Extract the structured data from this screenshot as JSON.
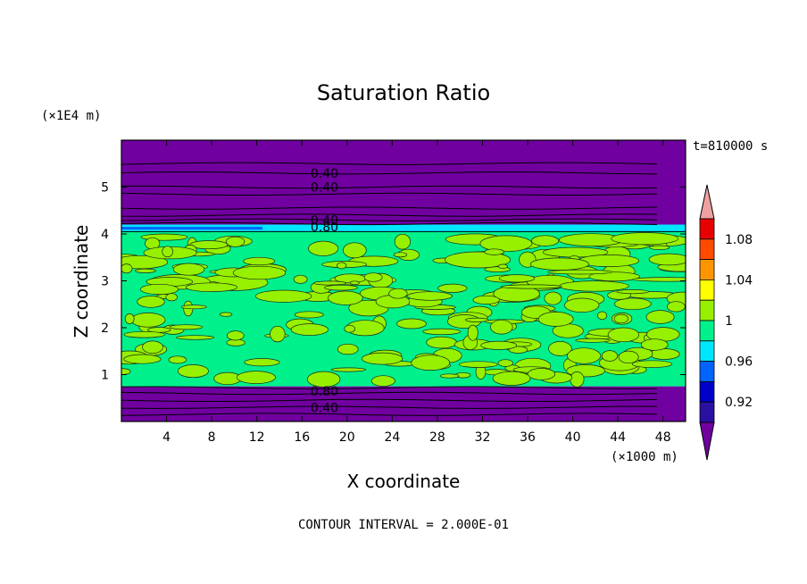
{
  "chart_data": {
    "type": "heatmap",
    "title": "Saturation Ratio",
    "xlabel": "X coordinate",
    "ylabel": "Z coordinate",
    "x_unit": "(×1000 m)",
    "y_unit": "(×1E4 m)",
    "time_label": "t=810000 s",
    "footer": "CONTOUR INTERVAL = 2.000E-01",
    "xlim": [
      0,
      50
    ],
    "ylim": [
      0,
      6
    ],
    "x_ticks": [
      4,
      8,
      12,
      16,
      20,
      24,
      28,
      32,
      36,
      40,
      44,
      48
    ],
    "y_ticks": [
      1,
      2,
      3,
      4,
      5
    ],
    "contour_labels": [
      {
        "text": "0.40",
        "x": 18,
        "y": 5.3
      },
      {
        "text": "0.40",
        "x": 18,
        "y": 5.0
      },
      {
        "text": "0.40",
        "x": 18,
        "y": 4.3
      },
      {
        "text": "0.80",
        "x": 18,
        "y": 4.15
      },
      {
        "text": "0.80",
        "x": 18,
        "y": 0.65
      },
      {
        "text": "0.40",
        "x": 18,
        "y": 0.3
      }
    ],
    "colorbar": {
      "levels": [
        0.92,
        0.94,
        0.96,
        0.98,
        1.0,
        1.02,
        1.04,
        1.06,
        1.08,
        1.1
      ],
      "tick_labels": [
        "1.08",
        "1.04",
        "1",
        "0.96",
        "0.92"
      ],
      "tick_values": [
        1.08,
        1.04,
        1.0,
        0.96,
        0.92
      ],
      "colors": [
        "#7000a0",
        "#2a10a0",
        "#0000c8",
        "#0064ff",
        "#00e6ff",
        "#00f08c",
        "#96f000",
        "#ffff00",
        "#ff9600",
        "#ff4b00",
        "#e60000",
        "#f0a0a0"
      ]
    },
    "layers": [
      {
        "from": 0.0,
        "to": 0.75,
        "color": "#7000a0"
      },
      {
        "from": 0.75,
        "to": 4.05,
        "color": "#00f08c"
      },
      {
        "from": 4.05,
        "to": 4.2,
        "color": "#00e6ff"
      },
      {
        "from": 4.2,
        "to": 6.0,
        "color": "#7000a0"
      }
    ]
  }
}
